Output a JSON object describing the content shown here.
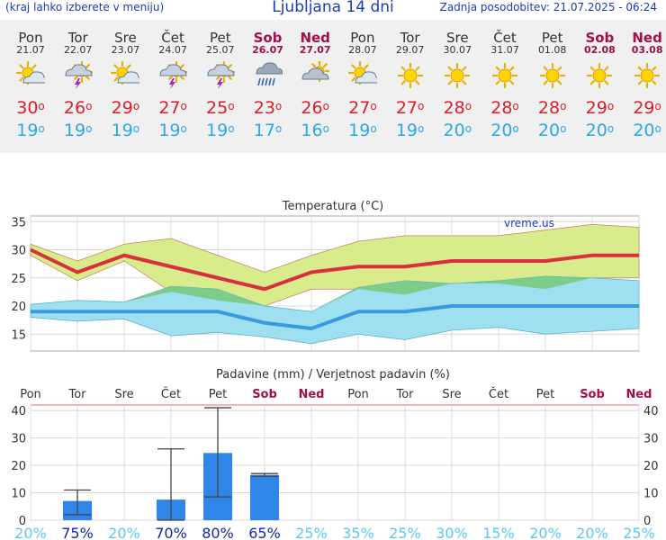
{
  "header": {
    "left_text": "(kraj lahko izberete v meniju)",
    "title": "Ljubljana 14 dni",
    "update_text": "Zadnja posodobitev: 21.07.2025 - 06:24"
  },
  "days": [
    {
      "name": "Pon",
      "date": "21.07",
      "weekend": false,
      "icon": "partly-cloudy-icon",
      "max": "30",
      "min": "19"
    },
    {
      "name": "Tor",
      "date": "22.07",
      "weekend": false,
      "icon": "thunderstorm-icon",
      "max": "26",
      "min": "19"
    },
    {
      "name": "Sre",
      "date": "23.07",
      "weekend": false,
      "icon": "partly-cloudy-icon",
      "max": "29",
      "min": "19"
    },
    {
      "name": "Čet",
      "date": "24.07",
      "weekend": false,
      "icon": "thunderstorm-icon",
      "max": "27",
      "min": "19"
    },
    {
      "name": "Pet",
      "date": "25.07",
      "weekend": false,
      "icon": "thunderstorm-icon",
      "max": "25",
      "min": "19"
    },
    {
      "name": "Sob",
      "date": "26.07",
      "weekend": true,
      "icon": "rain-cloud-icon",
      "max": "23",
      "min": "17"
    },
    {
      "name": "Ned",
      "date": "27.07",
      "weekend": true,
      "icon": "cloudy-sun-icon",
      "max": "26",
      "min": "16"
    },
    {
      "name": "Pon",
      "date": "28.07",
      "weekend": false,
      "icon": "partly-cloudy-icon",
      "max": "27",
      "min": "19"
    },
    {
      "name": "Tor",
      "date": "29.07",
      "weekend": false,
      "icon": "sun-icon",
      "max": "27",
      "min": "19"
    },
    {
      "name": "Sre",
      "date": "30.07",
      "weekend": false,
      "icon": "sun-icon",
      "max": "28",
      "min": "20"
    },
    {
      "name": "Čet",
      "date": "31.07",
      "weekend": false,
      "icon": "sun-icon",
      "max": "28",
      "min": "20"
    },
    {
      "name": "Pet",
      "date": "01.08",
      "weekend": false,
      "icon": "sun-icon",
      "max": "28",
      "min": "20"
    },
    {
      "name": "Sob",
      "date": "02.08",
      "weekend": true,
      "icon": "sun-icon",
      "max": "29",
      "min": "20"
    },
    {
      "name": "Ned",
      "date": "03.08",
      "weekend": true,
      "icon": "sun-icon",
      "max": "29",
      "min": "20"
    }
  ],
  "colors": {
    "max_line": "#d8303c",
    "min_line": "#3a9ae0",
    "max_band": "#d8ec8c",
    "min_band": "#9ee0f0",
    "overlap": "#78c878",
    "bar": "#2e86e8",
    "weekend": "#a0104c",
    "prob_high": "#1428a0",
    "prob_low": "#5ec8ec"
  },
  "chart_data": [
    {
      "type": "line",
      "title": "Temperatura (°C)",
      "watermark": "vreme.us",
      "categories": [
        "21.07",
        "22.07",
        "23.07",
        "24.07",
        "25.07",
        "26.07",
        "27.07",
        "28.07",
        "29.07",
        "30.07",
        "31.07",
        "01.08",
        "02.08",
        "03.08"
      ],
      "ylim": [
        12,
        36
      ],
      "yticks": [
        15,
        20,
        25,
        30,
        35
      ],
      "grid": true,
      "series": [
        {
          "name": "max",
          "values": [
            30,
            26,
            29,
            27,
            25,
            23,
            26,
            27,
            27,
            28,
            28,
            28,
            29,
            29
          ]
        },
        {
          "name": "min",
          "values": [
            19,
            19,
            19,
            19,
            19,
            17,
            16,
            19,
            19,
            20,
            20,
            20,
            20,
            20
          ]
        },
        {
          "name": "max_high",
          "values": [
            31,
            28,
            31,
            32,
            29,
            26,
            29,
            31.5,
            32.5,
            32.5,
            32.5,
            33.5,
            34.5,
            34
          ]
        },
        {
          "name": "max_low",
          "values": [
            29,
            24.5,
            28,
            22.5,
            21,
            20,
            23,
            23,
            22,
            24,
            24,
            23,
            25,
            25
          ]
        },
        {
          "name": "min_high",
          "values": [
            20.3,
            21,
            20.7,
            23.5,
            23,
            20,
            19,
            23.3,
            24.5,
            24,
            24.5,
            25.3,
            25,
            24.5
          ]
        },
        {
          "name": "min_low",
          "values": [
            18,
            17.3,
            17.7,
            14.7,
            15.3,
            14.5,
            13.3,
            15,
            14,
            15.7,
            16.2,
            15,
            15.5,
            16
          ]
        }
      ]
    },
    {
      "type": "bar",
      "title": "Padavine (mm) / Verjetnost padavin (%)",
      "categories": [
        "Pon",
        "Tor",
        "Sre",
        "Čet",
        "Pet",
        "Sob",
        "Ned",
        "Pon",
        "Tor",
        "Sre",
        "Čet",
        "Pet",
        "Sob",
        "Ned"
      ],
      "ylim": [
        0,
        42
      ],
      "yticks": [
        0,
        10,
        20,
        30,
        40
      ],
      "values": [
        0,
        7,
        0,
        7.5,
        24.5,
        16.5,
        0,
        0,
        0,
        0,
        0,
        0,
        0,
        0
      ],
      "error_high": [
        null,
        11,
        null,
        26,
        41,
        17,
        null,
        null,
        null,
        null,
        null,
        null,
        null,
        null
      ],
      "error_low": [
        null,
        2,
        null,
        0,
        8.5,
        16,
        null,
        null,
        null,
        null,
        null,
        null,
        null,
        null
      ],
      "probabilities": [
        "20%",
        "75%",
        "20%",
        "70%",
        "80%",
        "65%",
        "25%",
        "35%",
        "25%",
        "30%",
        "15%",
        "20%",
        "20%",
        "25%"
      ]
    }
  ]
}
